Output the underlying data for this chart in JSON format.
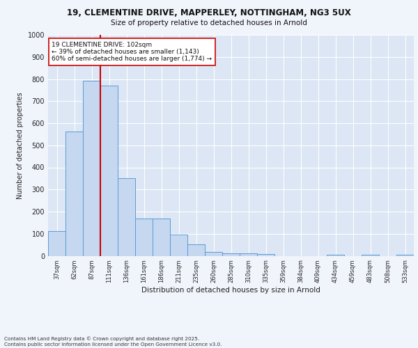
{
  "title_line1": "19, CLEMENTINE DRIVE, MAPPERLEY, NOTTINGHAM, NG3 5UX",
  "title_line2": "Size of property relative to detached houses in Arnold",
  "xlabel": "Distribution of detached houses by size in Arnold",
  "ylabel": "Number of detached properties",
  "categories": [
    "37sqm",
    "62sqm",
    "87sqm",
    "111sqm",
    "136sqm",
    "161sqm",
    "186sqm",
    "211sqm",
    "235sqm",
    "260sqm",
    "285sqm",
    "310sqm",
    "335sqm",
    "359sqm",
    "384sqm",
    "409sqm",
    "434sqm",
    "459sqm",
    "483sqm",
    "508sqm",
    "533sqm"
  ],
  "values": [
    112,
    562,
    793,
    770,
    350,
    168,
    168,
    97,
    53,
    17,
    12,
    12,
    8,
    0,
    0,
    0,
    5,
    0,
    5,
    0,
    5
  ],
  "bar_color": "#c5d8f0",
  "bar_edge_color": "#5b9bd5",
  "background_color": "#dce6f5",
  "grid_color": "#ffffff",
  "vline_color": "#cc0000",
  "annotation_text": "19 CLEMENTINE DRIVE: 102sqm\n← 39% of detached houses are smaller (1,143)\n60% of semi-detached houses are larger (1,774) →",
  "annotation_box_color": "#ffffff",
  "annotation_box_edge": "#cc0000",
  "ylim": [
    0,
    1000
  ],
  "yticks": [
    0,
    100,
    200,
    300,
    400,
    500,
    600,
    700,
    800,
    900,
    1000
  ],
  "footnote": "Contains HM Land Registry data © Crown copyright and database right 2025.\nContains public sector information licensed under the Open Government Licence v3.0.",
  "fig_bg": "#f0f4fb"
}
